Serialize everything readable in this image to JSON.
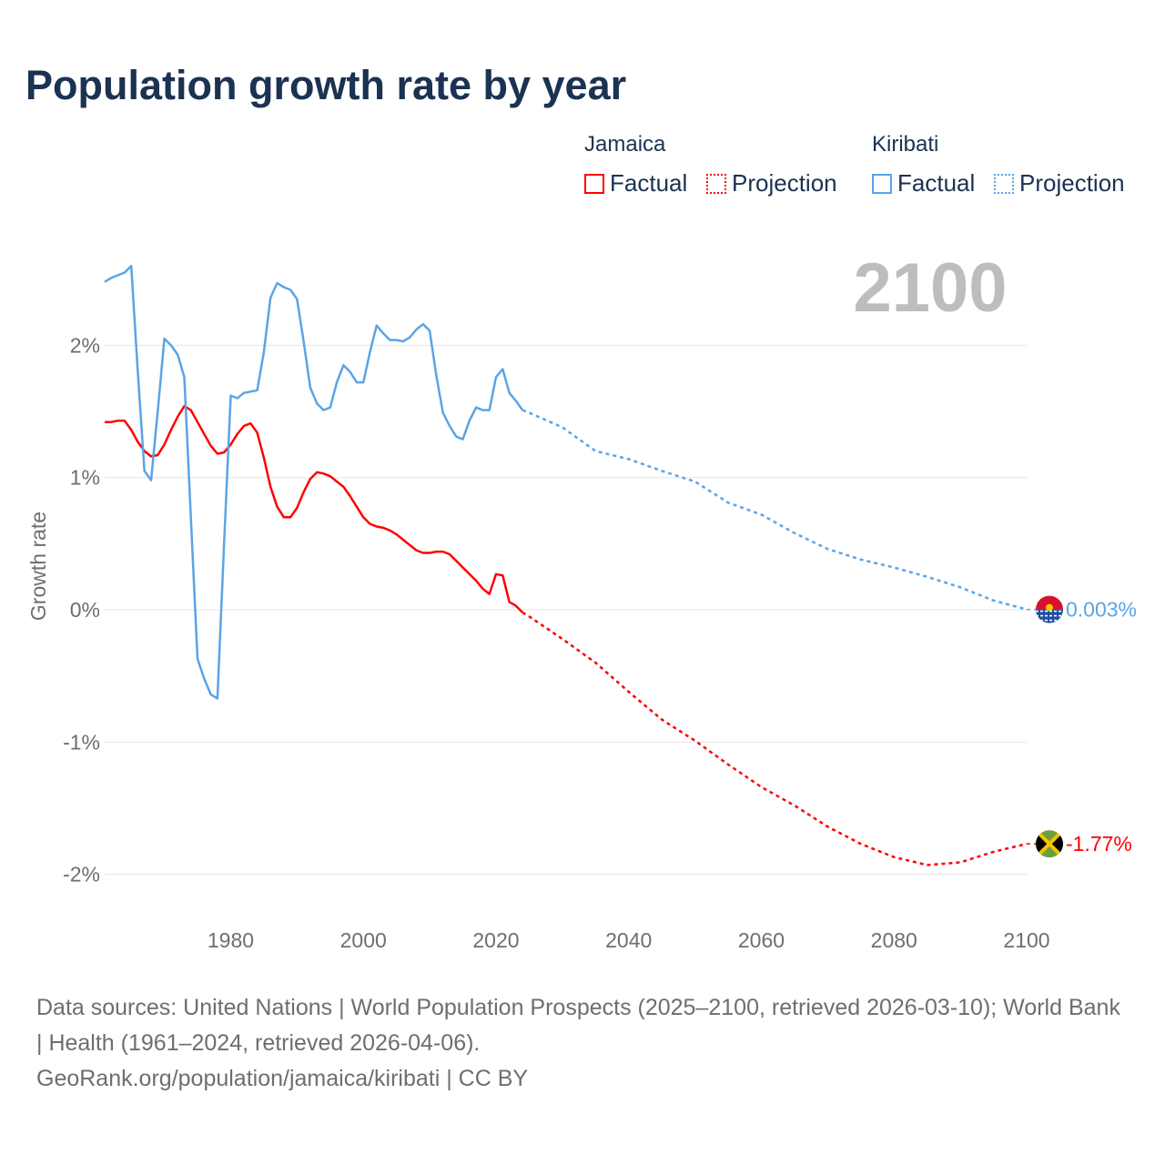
{
  "title": "Population growth rate by year",
  "legend": {
    "groups": [
      {
        "name": "Jamaica",
        "factual": "Factual",
        "projection": "Projection",
        "color": "#ff0000"
      },
      {
        "name": "Kiribati",
        "factual": "Factual",
        "projection": "Projection",
        "color": "#5ba4e6"
      }
    ]
  },
  "year_label": "2100",
  "footer": {
    "sources": "Data sources: United Nations | World Population Prospects (2025–2100, retrieved 2026-03-10); World Bank | Health (1961–2024, retrieved 2026-04-06).",
    "credit": "GeoRank.org/population/jamaica/kiribati | CC BY"
  },
  "chart_data": {
    "type": "line",
    "title": "Population growth rate by year",
    "xlabel": "",
    "ylabel": "Growth rate",
    "xlim": [
      1961,
      2100
    ],
    "ylim": [
      -2.3,
      2.7
    ],
    "x_ticks": [
      1980,
      2000,
      2020,
      2040,
      2060,
      2080,
      2100
    ],
    "x_tick_labels": [
      "1980",
      "2000",
      "2020",
      "2040",
      "2060",
      "2080",
      "2100"
    ],
    "y_ticks": [
      2,
      1,
      0,
      -1,
      -2
    ],
    "y_tick_labels": [
      "2%",
      "1%",
      "0%",
      "-1%",
      "-2%"
    ],
    "grid": true,
    "legend_position": "top-right",
    "series": [
      {
        "name": "Jamaica",
        "color": "#ff0000",
        "end_label": "-1.77%",
        "flag": "jamaica-flag",
        "factual": {
          "x": [
            1961,
            1962,
            1963,
            1964,
            1965,
            1966,
            1967,
            1968,
            1969,
            1970,
            1971,
            1972,
            1973,
            1974,
            1975,
            1976,
            1977,
            1978,
            1979,
            1980,
            1981,
            1982,
            1983,
            1984,
            1985,
            1986,
            1987,
            1988,
            1989,
            1990,
            1991,
            1992,
            1993,
            1994,
            1995,
            1996,
            1997,
            1998,
            1999,
            2000,
            2001,
            2002,
            2003,
            2004,
            2005,
            2006,
            2007,
            2008,
            2009,
            2010,
            2011,
            2012,
            2013,
            2014,
            2015,
            2016,
            2017,
            2018,
            2019,
            2020,
            2021,
            2022,
            2023,
            2024
          ],
          "y": [
            1.42,
            1.42,
            1.43,
            1.43,
            1.36,
            1.27,
            1.2,
            1.16,
            1.17,
            1.25,
            1.36,
            1.46,
            1.54,
            1.51,
            1.42,
            1.33,
            1.24,
            1.18,
            1.19,
            1.25,
            1.33,
            1.39,
            1.41,
            1.34,
            1.15,
            0.93,
            0.78,
            0.7,
            0.7,
            0.77,
            0.89,
            0.99,
            1.04,
            1.03,
            1.01,
            0.97,
            0.93,
            0.86,
            0.78,
            0.7,
            0.65,
            0.63,
            0.62,
            0.6,
            0.57,
            0.53,
            0.49,
            0.45,
            0.43,
            0.43,
            0.44,
            0.44,
            0.42,
            0.37,
            0.32,
            0.27,
            0.22,
            0.16,
            0.12,
            0.27,
            0.26,
            0.06,
            0.03,
            -0.02
          ]
        },
        "projection": {
          "x": [
            2024,
            2025,
            2030,
            2035,
            2040,
            2045,
            2050,
            2055,
            2060,
            2065,
            2070,
            2075,
            2080,
            2085,
            2090,
            2095,
            2100
          ],
          "y": [
            -0.02,
            -0.05,
            -0.22,
            -0.4,
            -0.62,
            -0.83,
            -0.99,
            -1.17,
            -1.34,
            -1.48,
            -1.64,
            -1.77,
            -1.87,
            -1.93,
            -1.91,
            -1.83,
            -1.77
          ]
        }
      },
      {
        "name": "Kiribati",
        "color": "#5ba4e6",
        "end_label": "0.003%",
        "flag": "kiribati-flag",
        "factual": {
          "x": [
            1961,
            1962,
            1963,
            1964,
            1965,
            1966,
            1967,
            1968,
            1969,
            1970,
            1971,
            1972,
            1973,
            1974,
            1975,
            1976,
            1977,
            1978,
            1979,
            1980,
            1981,
            1982,
            1983,
            1984,
            1985,
            1986,
            1987,
            1988,
            1989,
            1990,
            1991,
            1992,
            1993,
            1994,
            1995,
            1996,
            1997,
            1998,
            1999,
            2000,
            2001,
            2002,
            2003,
            2004,
            2005,
            2006,
            2007,
            2008,
            2009,
            2010,
            2011,
            2012,
            2013,
            2014,
            2015,
            2016,
            2017,
            2018,
            2019,
            2020,
            2021,
            2022,
            2023,
            2024
          ],
          "y": [
            2.48,
            2.51,
            2.53,
            2.55,
            2.6,
            1.8,
            1.05,
            0.98,
            1.5,
            2.05,
            2.0,
            1.93,
            1.76,
            0.7,
            -0.37,
            -0.52,
            -0.64,
            -0.67,
            0.5,
            1.62,
            1.6,
            1.64,
            1.65,
            1.66,
            1.95,
            2.36,
            2.47,
            2.44,
            2.42,
            2.35,
            2.03,
            1.68,
            1.56,
            1.51,
            1.53,
            1.72,
            1.85,
            1.8,
            1.72,
            1.72,
            1.95,
            2.15,
            2.09,
            2.04,
            2.04,
            2.03,
            2.06,
            2.12,
            2.16,
            2.11,
            1.77,
            1.49,
            1.39,
            1.31,
            1.29,
            1.43,
            1.53,
            1.51,
            1.51,
            1.76,
            1.82,
            1.64,
            1.58,
            1.51
          ]
        },
        "projection": {
          "x": [
            2024,
            2025,
            2030,
            2035,
            2040,
            2045,
            2050,
            2055,
            2060,
            2065,
            2070,
            2075,
            2080,
            2085,
            2090,
            2095,
            2100
          ],
          "y": [
            1.51,
            1.49,
            1.38,
            1.2,
            1.14,
            1.05,
            0.97,
            0.81,
            0.72,
            0.58,
            0.46,
            0.38,
            0.32,
            0.25,
            0.17,
            0.07,
            0.003
          ]
        }
      }
    ]
  }
}
